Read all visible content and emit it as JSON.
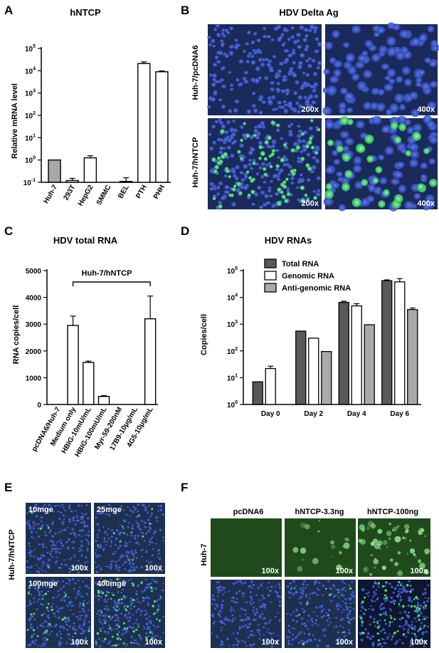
{
  "colors": {
    "micrograph_bg": "#1a2a5a",
    "nuclei_blue": "#3050c8",
    "nuclei_light": "#5070e0",
    "gfp_green": "#40e070",
    "gfp_bg": "#1f4a1c",
    "gray_bar": "#a9a9a9",
    "dark_bar": "#595959"
  },
  "panels": {
    "A": {
      "letter": "A",
      "title": "hNTCP",
      "ylabel": "Relative mRNA level"
    },
    "B": {
      "letter": "B",
      "title": "HDV Delta Ag",
      "row_labels": [
        "Huh-7/pcDNA6",
        "Huh-7/hNTCP"
      ],
      "tiles": [
        {
          "mag": "200x",
          "green_density": 0
        },
        {
          "mag": "400x",
          "green_density": 0
        },
        {
          "mag": "200x",
          "green_density": 0.35
        },
        {
          "mag": "400x",
          "green_density": 0.35
        }
      ]
    },
    "C": {
      "letter": "C",
      "title": "HDV total RNA",
      "ylabel": "RNA copies/cell",
      "bracket_label": "Huh-7/hNTCP"
    },
    "D": {
      "letter": "D",
      "title": "HDV RNAs",
      "ylabel": "Copies/cell"
    },
    "E": {
      "letter": "E",
      "row_label": "Huh-7/hNTCP",
      "tiles": [
        {
          "label": "10mge",
          "mag": "100x",
          "green_density": 0.02
        },
        {
          "label": "25mge",
          "mag": "100x",
          "green_density": 0.05
        },
        {
          "label": "100mge",
          "mag": "100x",
          "green_density": 0.12
        },
        {
          "label": "400mge",
          "mag": "100x",
          "green_density": 0.28
        }
      ]
    },
    "F": {
      "letter": "F",
      "row_label": "Huh-7",
      "col_labels": [
        "pcDNA6",
        "hNTCP-3.3ng",
        "hNTCP-100ng"
      ],
      "top_tiles": [
        {
          "mag": "100x",
          "level": 0
        },
        {
          "mag": "100x",
          "level": 0.15
        },
        {
          "mag": "100x",
          "level": 0.5
        }
      ],
      "bottom_tiles": [
        {
          "mag": "100x",
          "green_density": 0
        },
        {
          "mag": "100x",
          "green_density": 0.05
        },
        {
          "mag": "100x",
          "green_density": 0.3
        }
      ]
    }
  },
  "chart_data": [
    {
      "panel": "A",
      "type": "bar",
      "scale": "log",
      "categories": [
        "Huh-7",
        "293T",
        "HepG2",
        "SMMC",
        "BEL",
        "PTH",
        "PHH"
      ],
      "values": [
        1.0,
        0.12,
        1.25,
        0.1,
        0.11,
        21000,
        9000
      ],
      "errors": [
        0,
        0.03,
        0.3,
        0,
        0.05,
        4000,
        800
      ],
      "fills": [
        "#a9a9a9",
        "#ffffff",
        "#ffffff",
        "#ffffff",
        "#ffffff",
        "#ffffff",
        "#ffffff"
      ],
      "yticks": [
        {
          "value": 0.1,
          "base": "10",
          "exp": "-1"
        },
        {
          "value": 1,
          "base": "10",
          "exp": "0"
        },
        {
          "value": 10,
          "base": "10",
          "exp": "1"
        },
        {
          "value": 100,
          "base": "10",
          "exp": "2"
        },
        {
          "value": 1000,
          "base": "10",
          "exp": "3"
        },
        {
          "value": 10000,
          "base": "10",
          "exp": "4"
        },
        {
          "value": 100000,
          "base": "10",
          "exp": "5"
        }
      ],
      "ylim": [
        0.1,
        100000
      ]
    },
    {
      "panel": "C",
      "type": "bar",
      "scale": "linear",
      "categories": [
        "pcDNA6/Huh-7",
        "Medium only",
        "HBIG-10mU/mL",
        "HBIG-100mU/mL",
        "Myr-59-200nM",
        "17B9-10μg/mL",
        "4G5-10μg/mL"
      ],
      "values": [
        0,
        2950,
        1570,
        300,
        0,
        0,
        3200
      ],
      "errors": [
        0,
        350,
        50,
        30,
        0,
        0,
        850
      ],
      "yticks": [
        0,
        1000,
        2000,
        3000,
        4000,
        5000
      ],
      "ylim": [
        0,
        5000
      ]
    },
    {
      "panel": "D",
      "type": "bar",
      "scale": "log",
      "categories": [
        "Day 0",
        "Day 2",
        "Day 4",
        "Day 6"
      ],
      "series": [
        {
          "name": "Total RNA",
          "color": "#595959",
          "values": [
            7,
            550,
            6500,
            42000
          ],
          "errors": [
            0,
            0,
            700,
            3000
          ]
        },
        {
          "name": "Genomic RNA",
          "color": "#ffffff",
          "values": [
            22,
            300,
            4800,
            38000
          ],
          "errors": [
            5,
            0,
            1000,
            12000
          ]
        },
        {
          "name": "Anti-genomic RNA",
          "color": "#a9a9a9",
          "values": [
            1,
            95,
            950,
            3500
          ],
          "errors": [
            0,
            0,
            0,
            500
          ]
        }
      ],
      "yticks": [
        {
          "value": 1,
          "base": "10",
          "exp": "0"
        },
        {
          "value": 10,
          "base": "10",
          "exp": "1"
        },
        {
          "value": 100,
          "base": "10",
          "exp": "2"
        },
        {
          "value": 1000,
          "base": "10",
          "exp": "3"
        },
        {
          "value": 10000,
          "base": "10",
          "exp": "4"
        },
        {
          "value": 100000,
          "base": "10",
          "exp": "5"
        }
      ],
      "ylim": [
        1,
        100000
      ],
      "legend": "top-left"
    }
  ]
}
